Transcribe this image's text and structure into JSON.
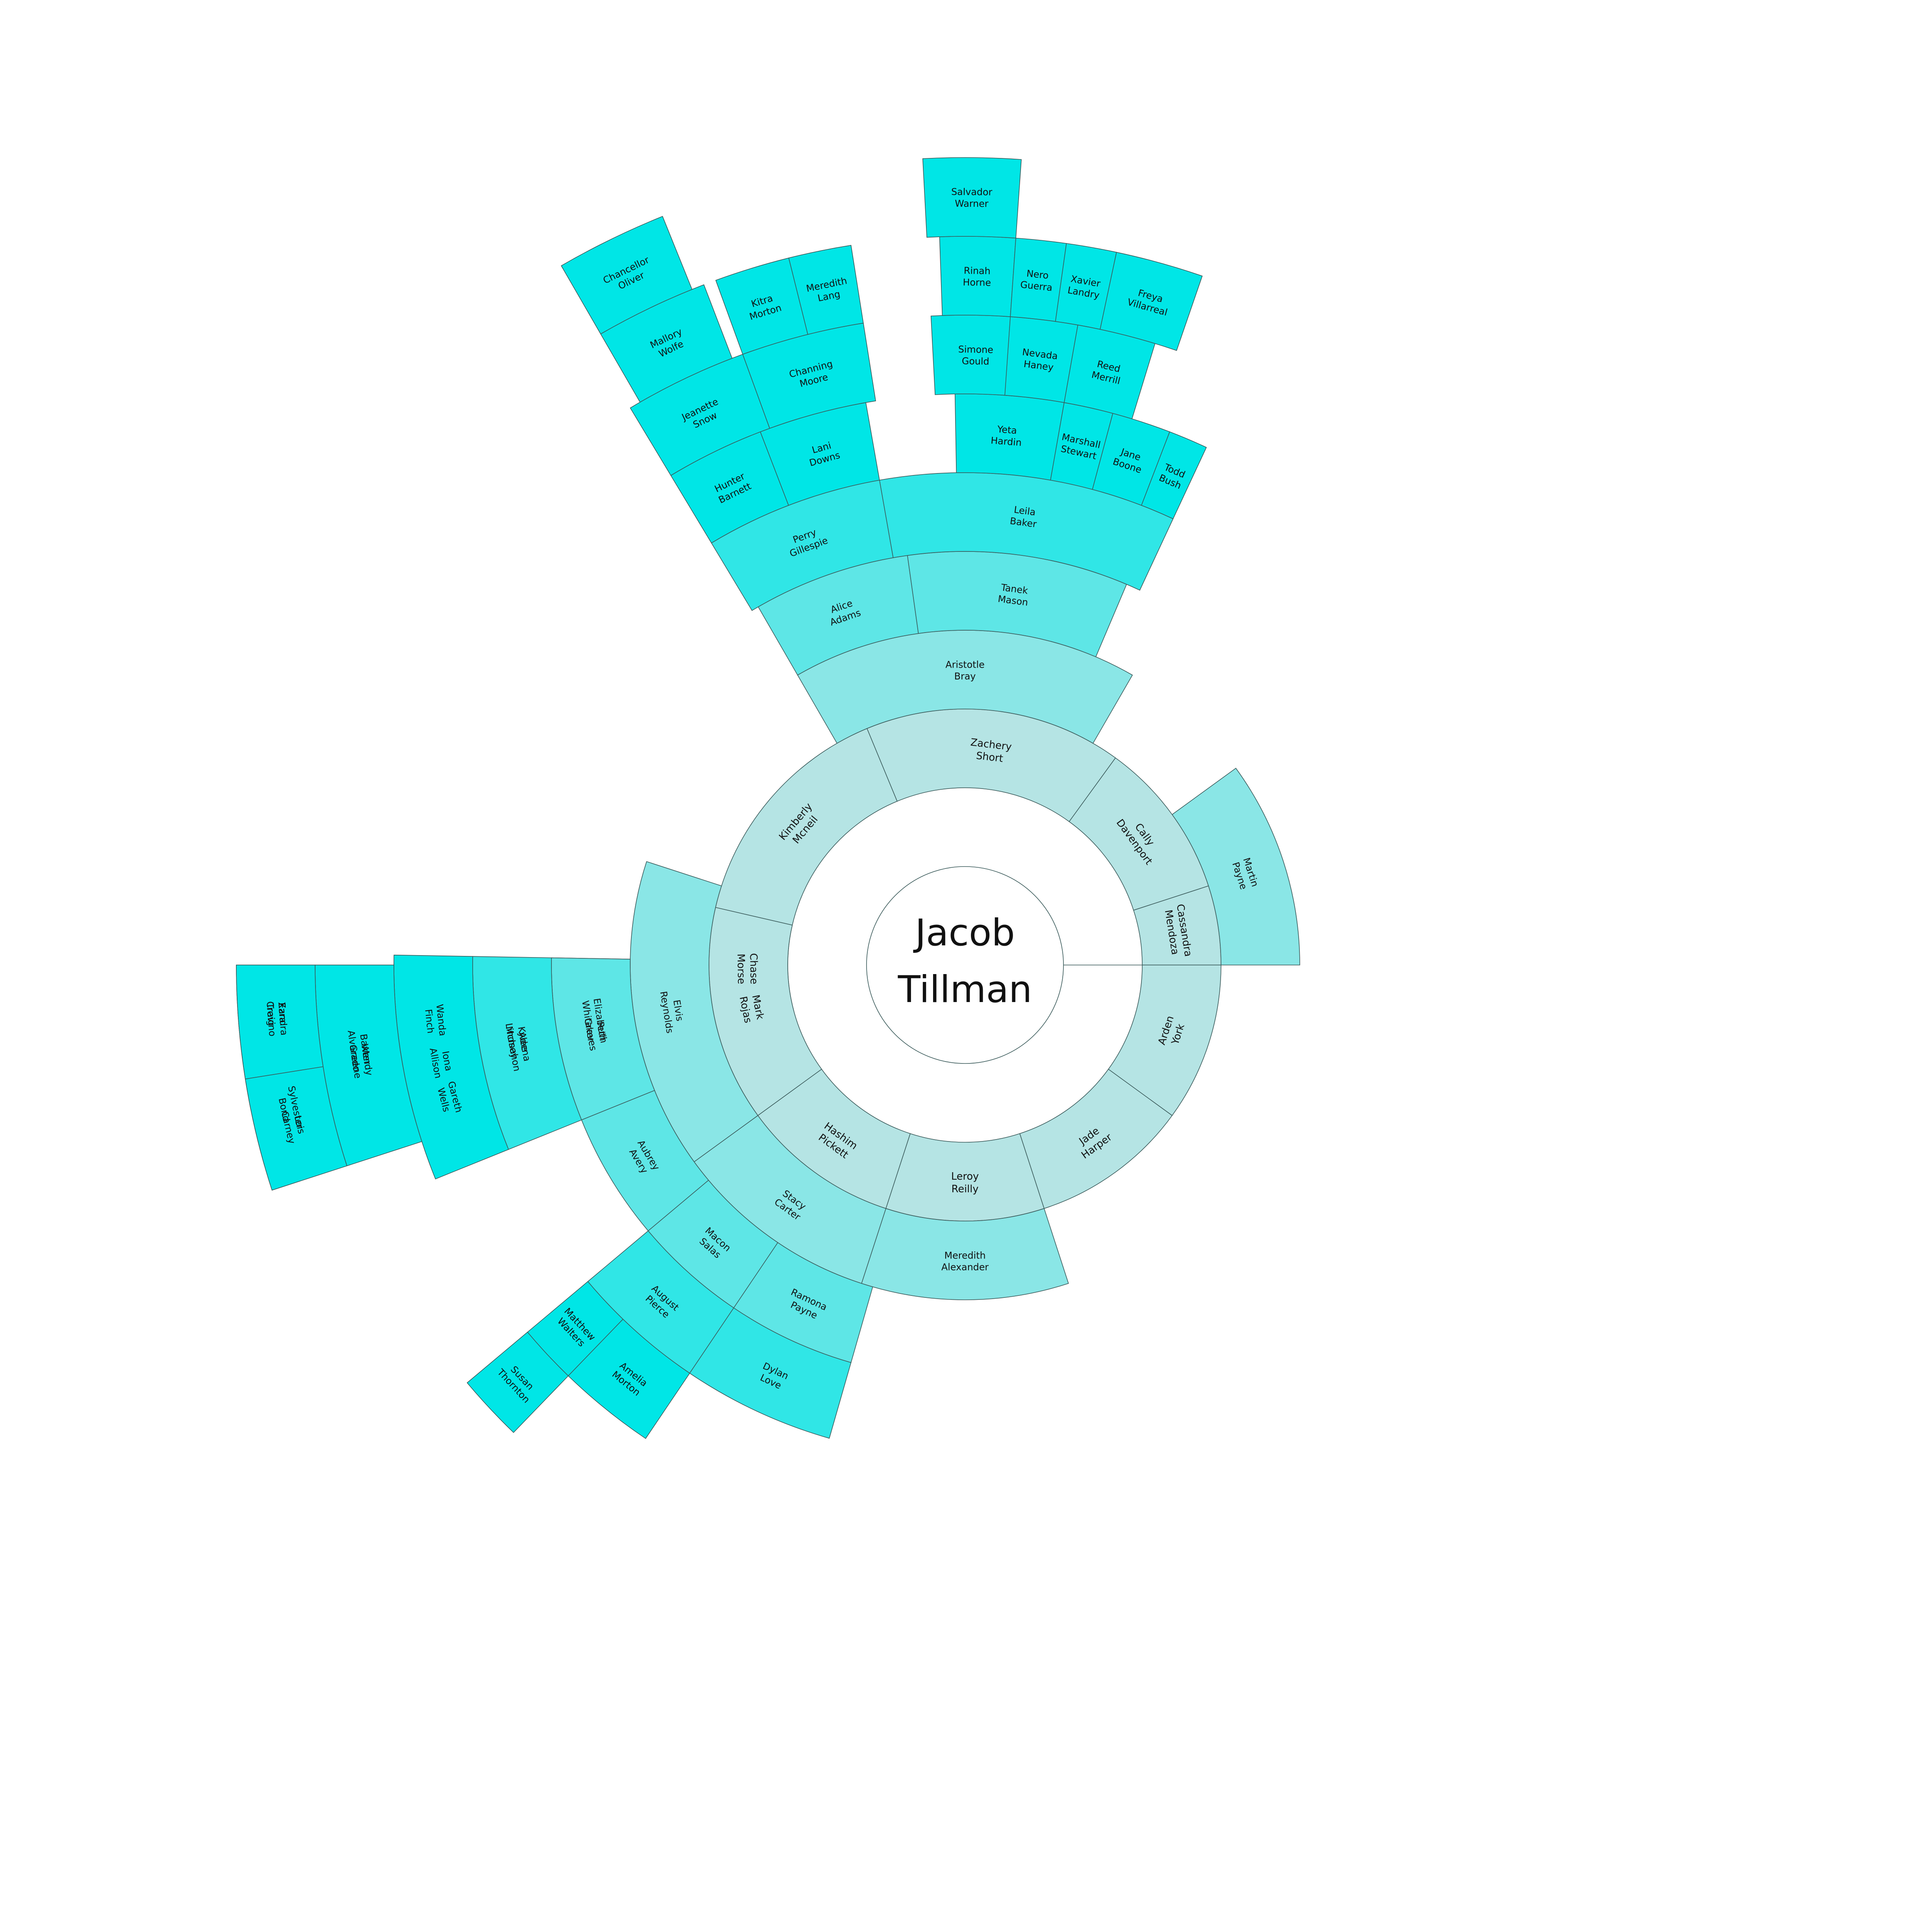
{
  "root": {
    "line1": "Jacob",
    "line2": "Tillman"
  },
  "colors": [
    "#b5e4e4",
    "#8ae6e6",
    "#5ee6e6",
    "#30e6e6",
    "#00e6e6"
  ],
  "nodes": [
    {
      "id": "chase",
      "parent": "root",
      "line1": "Chase",
      "line2": "Morse"
    },
    {
      "id": "kimberly",
      "parent": "root",
      "line1": "Kimberly",
      "line2": "Mcneil"
    },
    {
      "id": "zachery",
      "parent": "root",
      "line1": "Zachery",
      "line2": "Short"
    },
    {
      "id": "cally",
      "parent": "root",
      "line1": "Cally",
      "line2": "Davenport"
    },
    {
      "id": "cassandra",
      "parent": "root",
      "line1": "Cassandra",
      "line2": "Mendoza"
    },
    {
      "id": "arden",
      "parent": "root",
      "line1": "Arden",
      "line2": "York"
    },
    {
      "id": "jade",
      "parent": "root",
      "line1": "Jade",
      "line2": "Harper"
    },
    {
      "id": "leroy",
      "parent": "root",
      "line1": "Leroy",
      "line2": "Reilly"
    },
    {
      "id": "hashim",
      "parent": "root",
      "line1": "Hashim",
      "line2": "Pickett"
    },
    {
      "id": "mark",
      "parent": "root",
      "line1": "Mark",
      "line2": "Rojas"
    },
    {
      "id": "martin",
      "parent": "cassandra",
      "line1": "Martin",
      "line2": "Payne"
    },
    {
      "id": "aristotle",
      "parent": "zachery",
      "line1": "Aristotle",
      "line2": "Bray"
    },
    {
      "id": "meredith-a",
      "parent": "leroy",
      "line1": "Meredith",
      "line2": "Alexander"
    },
    {
      "id": "stacy",
      "parent": "hashim",
      "line1": "Stacy",
      "line2": "Carter"
    },
    {
      "id": "elvis",
      "parent": "mark",
      "line1": "Elvis",
      "line2": "Reynolds"
    },
    {
      "id": "alice",
      "parent": "aristotle",
      "line1": "Alice",
      "line2": "Adams"
    },
    {
      "id": "tanek",
      "parent": "aristotle",
      "line1": "Tanek",
      "line2": "Mason"
    },
    {
      "id": "elizabeth",
      "parent": "elvis",
      "line1": "Elizabeth",
      "line2": "Whitaker"
    },
    {
      "id": "ruth",
      "parent": "elvis",
      "line1": "Ruth",
      "line2": "Graves"
    },
    {
      "id": "aubrey",
      "parent": "elvis",
      "line1": "Aubrey",
      "line2": "Avery"
    },
    {
      "id": "macon",
      "parent": "stacy",
      "line1": "Macon",
      "line2": "Salas"
    },
    {
      "id": "ramona",
      "parent": "stacy",
      "line1": "Ramona",
      "line2": "Payne"
    },
    {
      "id": "perry",
      "parent": "alice",
      "line1": "Perry",
      "line2": "Gillespie"
    },
    {
      "id": "leila",
      "parent": "tanek",
      "line1": "Leila",
      "line2": "Baker"
    },
    {
      "id": "kylee",
      "parent": "elizabeth",
      "line1": "Kylee",
      "line2": "Lindsey"
    },
    {
      "id": "adena",
      "parent": "ruth",
      "line1": "Adena",
      "line2": "Mcmahon"
    },
    {
      "id": "august",
      "parent": "macon",
      "line1": "August",
      "line2": "Pierce"
    },
    {
      "id": "dylan",
      "parent": "ramona",
      "line1": "Dylan",
      "line2": "Love"
    },
    {
      "id": "hunter",
      "parent": "perry",
      "line1": "Hunter",
      "line2": "Barnett"
    },
    {
      "id": "lani",
      "parent": "perry",
      "line1": "Lani",
      "line2": "Downs"
    },
    {
      "id": "yeta",
      "parent": "leila",
      "line1": "Yeta",
      "line2": "Hardin"
    },
    {
      "id": "marshall",
      "parent": "leila",
      "line1": "Marshall",
      "line2": "Stewart"
    },
    {
      "id": "jane",
      "parent": "leila",
      "line1": "Jane",
      "line2": "Boone"
    },
    {
      "id": "todd",
      "parent": "leila",
      "line1": "Todd",
      "line2": "Bush"
    },
    {
      "id": "gareth",
      "parent": "kylee",
      "line1": "Gareth",
      "line2": "Wells"
    },
    {
      "id": "wanda",
      "parent": "kylee",
      "line1": "Wanda",
      "line2": "Finch"
    },
    {
      "id": "iona",
      "parent": "adena",
      "line1": "Iona",
      "line2": "Allison"
    },
    {
      "id": "matthew",
      "parent": "august",
      "line1": "Matthew",
      "line2": "Walters"
    },
    {
      "id": "amelia",
      "parent": "august",
      "line1": "Amelia",
      "line2": "Morton"
    },
    {
      "id": "jeanette",
      "parent": "hunter",
      "line1": "Jeanette",
      "line2": "Snow"
    },
    {
      "id": "channing",
      "parent": "lani",
      "line1": "Channing",
      "line2": "Moore"
    },
    {
      "id": "simone",
      "parent": "yeta",
      "line1": "Simone",
      "line2": "Gould"
    },
    {
      "id": "nevada",
      "parent": "marshall",
      "line1": "Nevada",
      "line2": "Haney"
    },
    {
      "id": "reed",
      "parent": "marshall",
      "line1": "Reed",
      "line2": "Merrill"
    },
    {
      "id": "baxter",
      "parent": "wanda",
      "line1": "Baxter",
      "line2": "Alvarado"
    },
    {
      "id": "wendy",
      "parent": "iona",
      "line1": "Wendy",
      "line2": "Greene"
    },
    {
      "id": "susan",
      "parent": "matthew",
      "line1": "Susan",
      "line2": "Thornton"
    },
    {
      "id": "mallory",
      "parent": "jeanette",
      "line1": "Mallory",
      "line2": "Wolfe"
    },
    {
      "id": "meredith-l",
      "parent": "channing",
      "line1": "Meredith",
      "line2": "Lang"
    },
    {
      "id": "kitra",
      "parent": "channing",
      "line1": "Kitra",
      "line2": "Morton"
    },
    {
      "id": "rinah",
      "parent": "simone",
      "line1": "Rinah",
      "line2": "Horne"
    },
    {
      "id": "nero",
      "parent": "nevada",
      "line1": "Nero",
      "line2": "Guerra"
    },
    {
      "id": "xavier",
      "parent": "nevada",
      "line1": "Xavier",
      "line2": "Landry"
    },
    {
      "id": "freya",
      "parent": "reed",
      "line1": "Freya",
      "line2": "Villarreal"
    },
    {
      "id": "sylvester",
      "parent": "baxter",
      "line1": "Sylvester",
      "line2": "Bond"
    },
    {
      "id": "ezra",
      "parent": "baxter",
      "line1": "Ezra",
      "line2": "Craig"
    },
    {
      "id": "xandra",
      "parent": "wendy",
      "line1": "Xandra",
      "line2": "Trevino"
    },
    {
      "id": "lois",
      "parent": "wendy",
      "line1": "Lois",
      "line2": "Carney"
    },
    {
      "id": "chancellor",
      "parent": "mallory",
      "line1": "Chancellor",
      "line2": "Oliver"
    },
    {
      "id": "salvador",
      "parent": "rinah",
      "line1": "Salvador",
      "line2": "Warner"
    }
  ]
}
